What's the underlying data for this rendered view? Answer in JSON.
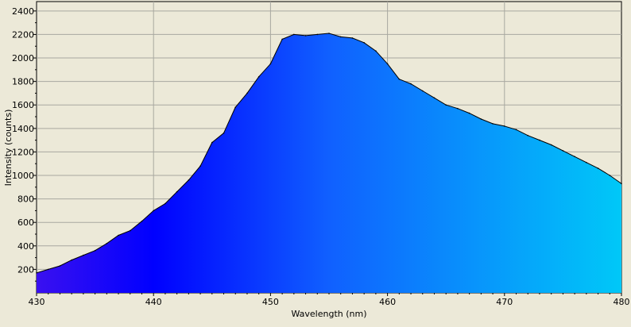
{
  "chart_data": {
    "type": "area",
    "title": "",
    "xlabel": "Wavelength (nm)",
    "ylabel": "Intensity (counts)",
    "xlim": [
      430,
      480
    ],
    "ylim": [
      0,
      2480
    ],
    "x_ticks": [
      430,
      440,
      450,
      460,
      470,
      480
    ],
    "x_tick_labels": [
      "430",
      "440",
      "450",
      "460",
      "470",
      "480"
    ],
    "y_ticks": [
      200,
      400,
      600,
      800,
      1000,
      1200,
      1400,
      1600,
      1800,
      2000,
      2200,
      2400
    ],
    "y_tick_labels": [
      "200",
      "400",
      "600",
      "800",
      "1000",
      "1200",
      "1400",
      "1600",
      "1800",
      "2000",
      "2200",
      "2400"
    ],
    "grid": true,
    "fill_colors": {
      "430": "#3a10f0",
      "440": "#0000ff",
      "455": "#1060ff",
      "480": "#00c8f8"
    },
    "line_color": "#000000",
    "series": [
      {
        "x": [
          430,
          431,
          432,
          433,
          434,
          435,
          436,
          437,
          438,
          439,
          440,
          441,
          442,
          443,
          444,
          445,
          446,
          447,
          448,
          449,
          450,
          451,
          452,
          453,
          454,
          455,
          456,
          457,
          458,
          459,
          460,
          461,
          462,
          463,
          464,
          465,
          466,
          467,
          468,
          469,
          470,
          471,
          472,
          473,
          474,
          475,
          476,
          477,
          478,
          479,
          480
        ],
        "values": [
          170,
          200,
          230,
          280,
          320,
          360,
          420,
          490,
          530,
          610,
          700,
          760,
          860,
          960,
          1080,
          1280,
          1360,
          1580,
          1700,
          1840,
          1950,
          2160,
          2200,
          2190,
          2200,
          2210,
          2180,
          2170,
          2130,
          2060,
          1950,
          1820,
          1780,
          1720,
          1660,
          1600,
          1570,
          1530,
          1480,
          1440,
          1420,
          1390,
          1340,
          1300,
          1260,
          1210,
          1160,
          1110,
          1060,
          1000,
          930
        ]
      }
    ]
  }
}
